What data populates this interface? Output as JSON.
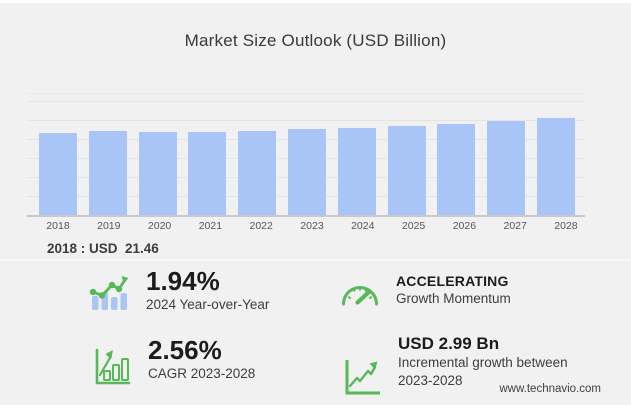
{
  "title": "Market Size Outlook (USD Billion)",
  "chart_data": {
    "type": "bar",
    "title": "Market Size Outlook (USD Billion)",
    "categories": [
      "2018",
      "2019",
      "2020",
      "2021",
      "2022",
      "2023",
      "2024",
      "2025",
      "2026",
      "2027",
      "2028"
    ],
    "values": [
      21.46,
      21.8,
      21.5,
      21.65,
      21.95,
      22.31,
      22.74,
      23.25,
      23.8,
      24.45,
      25.3
    ],
    "unit": "USD Billion",
    "xlabel": "",
    "ylabel": "",
    "ylim": [
      0,
      31.5
    ],
    "grid": true,
    "legend": false,
    "bar_color": "#a9c5f7",
    "annotation": "2018 : USD  21.46"
  },
  "stats": {
    "yoy": {
      "value": "1.94%",
      "label": "2024 Year-over-Year",
      "icon": "bar-trend-up-icon"
    },
    "momentum": {
      "value": "ACCELERATING",
      "label": "Growth Momentum",
      "icon": "gauge-icon"
    },
    "cagr": {
      "value": "2.56%",
      "label": "CAGR 2023-2028",
      "icon": "bar-chart-growth-icon"
    },
    "incremental": {
      "value": "USD 2.99 Bn",
      "label": "Incremental growth between 2023-2028",
      "icon": "line-chart-up-icon"
    }
  },
  "footer": {
    "source": "www.technavio.com"
  },
  "colors": {
    "background": "#f1f1f2",
    "bar_fill": "#a9c5f7",
    "accent_green": "#57b857",
    "text_dark": "#1c1c1c",
    "text_gray": "#3d3d3d"
  }
}
